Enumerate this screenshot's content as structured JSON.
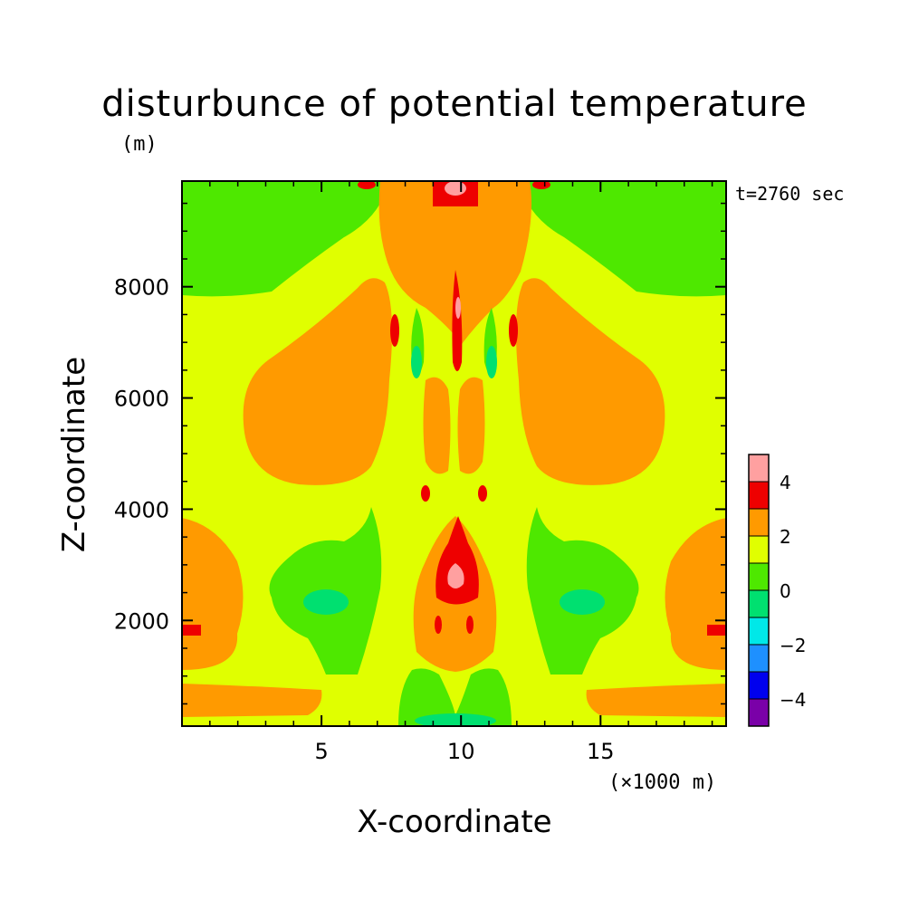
{
  "chart_data": {
    "type": "heatmap",
    "title": "disturbunce of potential temperature",
    "xlabel": "X-coordinate",
    "ylabel": "Z-coordinate",
    "x_unit": "(×1000 m)",
    "y_unit": "(m)",
    "time_label": "t=2760 sec",
    "xlim": [
      0,
      19.5
    ],
    "ylim": [
      100,
      9900
    ],
    "x_ticks": [
      5,
      10,
      15
    ],
    "y_ticks": [
      2000,
      4000,
      6000,
      8000
    ],
    "colorbar": {
      "levels": [
        -5,
        -4,
        -3,
        -2,
        -1,
        0,
        1,
        2,
        3,
        4,
        5
      ],
      "tick_labels": [
        -4,
        -2,
        0,
        2,
        4
      ],
      "colors": [
        "#7a00a8",
        "#0000ee",
        "#1e90ff",
        "#00e8e8",
        "#00e070",
        "#4ee800",
        "#e0ff00",
        "#ff9a00",
        "#ee0000",
        "#ffa0a0"
      ]
    },
    "grid": false
  }
}
